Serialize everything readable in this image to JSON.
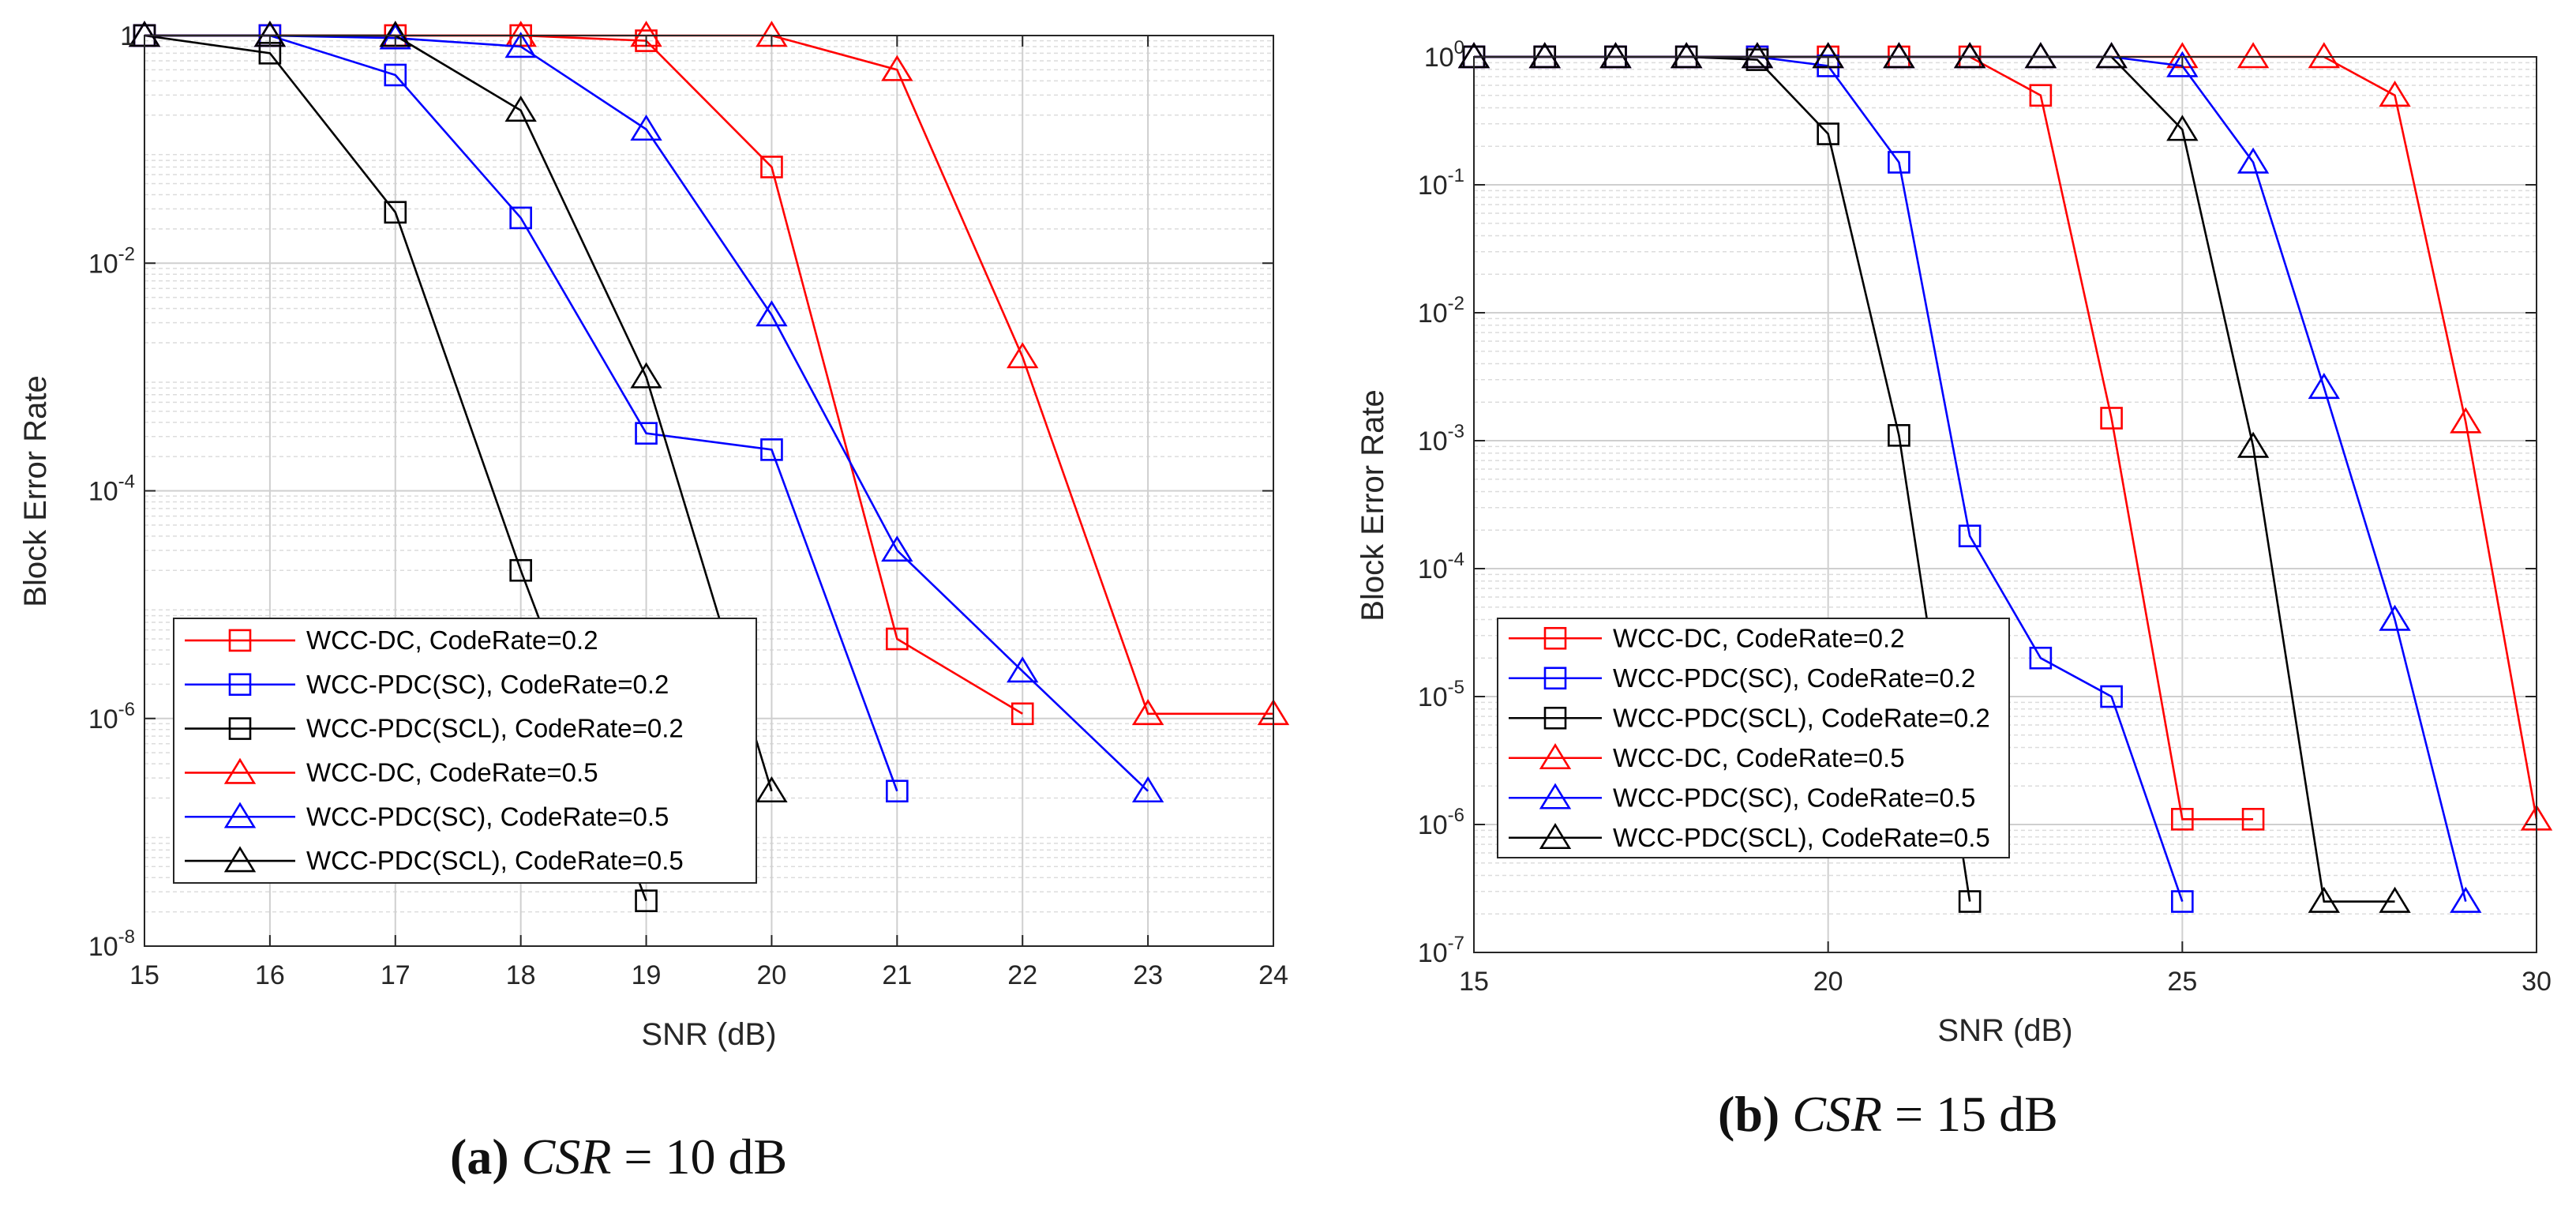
{
  "chart_data": [
    {
      "id": "a",
      "type": "line",
      "yscale": "log",
      "xlabel": "SNR (dB)",
      "ylabel": "Block Error Rate",
      "xlim": [
        15,
        24
      ],
      "ylim": [
        1e-08,
        1
      ],
      "xticks": [
        15,
        16,
        17,
        18,
        19,
        20,
        21,
        22,
        23,
        24
      ],
      "xtick_labels": [
        "15",
        "16",
        "17",
        "18",
        "19",
        "20",
        "21",
        "22",
        "23",
        "24"
      ],
      "yticks": [
        {
          "value": 1e-08,
          "base": "10",
          "exp": "-8"
        },
        {
          "value": 1e-06,
          "base": "10",
          "exp": "-6"
        },
        {
          "value": 0.0001,
          "base": "10",
          "exp": "-4"
        },
        {
          "value": 0.01,
          "base": "10",
          "exp": "-2"
        },
        {
          "value": 1,
          "base": "1",
          "exp": ""
        }
      ],
      "grid": true,
      "legend_position": "bottom-left",
      "caption": {
        "letter": "(a)",
        "variable": "CSR",
        "rest": " = 10 dB"
      },
      "series": [
        {
          "name": "WCC-DC, CodeRate=0.2",
          "color": "#ff0000",
          "marker": "square",
          "x": [
            15,
            16,
            17,
            18,
            19,
            20,
            21,
            22
          ],
          "y": [
            1,
            1,
            1,
            1,
            0.9,
            0.07,
            5e-06,
            1.1e-06
          ]
        },
        {
          "name": "WCC-PDC(SC), CodeRate=0.2",
          "color": "#0000ff",
          "marker": "square",
          "x": [
            15,
            16,
            17,
            18,
            19,
            20,
            21
          ],
          "y": [
            1,
            1,
            0.45,
            0.025,
            0.00032,
            0.00023,
            2.3e-07
          ]
        },
        {
          "name": "WCC-PDC(SCL), CodeRate=0.2",
          "color": "#000000",
          "marker": "square",
          "x": [
            15,
            16,
            17,
            18,
            19
          ],
          "y": [
            1,
            0.7,
            0.028,
            2e-05,
            2.5e-08
          ]
        },
        {
          "name": "WCC-DC, CodeRate=0.5",
          "color": "#ff0000",
          "marker": "triangle",
          "x": [
            15,
            16,
            17,
            18,
            19,
            20,
            21,
            22,
            23,
            24
          ],
          "y": [
            1,
            1,
            1,
            1,
            1,
            1,
            0.5,
            0.0015,
            1.1e-06,
            1.1e-06
          ]
        },
        {
          "name": "WCC-PDC(SC), CodeRate=0.5",
          "color": "#0000ff",
          "marker": "triangle",
          "x": [
            15,
            16,
            17,
            18,
            19,
            20,
            21,
            22,
            23
          ],
          "y": [
            1,
            1,
            0.95,
            0.8,
            0.15,
            0.0035,
            3e-05,
            2.6e-06,
            2.3e-07
          ]
        },
        {
          "name": "WCC-PDC(SCL), CodeRate=0.5",
          "color": "#000000",
          "marker": "triangle",
          "x": [
            15,
            16,
            17,
            18,
            19,
            20
          ],
          "y": [
            1,
            1,
            1,
            0.22,
            0.001,
            2.3e-07
          ]
        }
      ]
    },
    {
      "id": "b",
      "type": "line",
      "yscale": "log",
      "xlabel": "SNR (dB)",
      "ylabel": "Block Error Rate",
      "xlim": [
        15,
        30
      ],
      "ylim": [
        1e-07,
        1
      ],
      "xticks": [
        15,
        20,
        25,
        30
      ],
      "xtick_labels": [
        "15",
        "20",
        "25",
        "30"
      ],
      "yticks": [
        {
          "value": 1e-07,
          "base": "10",
          "exp": "-7"
        },
        {
          "value": 1e-06,
          "base": "10",
          "exp": "-6"
        },
        {
          "value": 1e-05,
          "base": "10",
          "exp": "-5"
        },
        {
          "value": 0.0001,
          "base": "10",
          "exp": "-4"
        },
        {
          "value": 0.001,
          "base": "10",
          "exp": "-3"
        },
        {
          "value": 0.01,
          "base": "10",
          "exp": "-2"
        },
        {
          "value": 0.1,
          "base": "10",
          "exp": "-1"
        },
        {
          "value": 1,
          "base": "10",
          "exp": "0"
        }
      ],
      "grid": true,
      "legend_position": "bottom-left",
      "caption": {
        "letter": "(b)",
        "variable": "CSR",
        "rest": " = 15 dB"
      },
      "series": [
        {
          "name": "WCC-DC, CodeRate=0.2",
          "color": "#ff0000",
          "marker": "square",
          "x": [
            15,
            16,
            17,
            18,
            19,
            20,
            21,
            22,
            23,
            24,
            25,
            26
          ],
          "y": [
            1,
            1,
            1,
            1,
            1,
            1,
            1,
            1,
            0.5,
            0.0015,
            1.1e-06,
            1.1e-06
          ]
        },
        {
          "name": "WCC-PDC(SC), CodeRate=0.2",
          "color": "#0000ff",
          "marker": "square",
          "x": [
            15,
            16,
            17,
            18,
            19,
            20,
            21,
            22,
            23,
            24,
            25
          ],
          "y": [
            1,
            1,
            1,
            1,
            1,
            0.85,
            0.15,
            0.00018,
            2e-05,
            1e-05,
            2.5e-07
          ]
        },
        {
          "name": "WCC-PDC(SCL), CodeRate=0.2",
          "color": "#000000",
          "marker": "square",
          "x": [
            15,
            16,
            17,
            18,
            19,
            20,
            21,
            22
          ],
          "y": [
            1,
            1,
            1,
            1,
            0.95,
            0.25,
            0.0011,
            2.5e-07
          ]
        },
        {
          "name": "WCC-DC, CodeRate=0.5",
          "color": "#ff0000",
          "marker": "triangle",
          "x": [
            15,
            16,
            17,
            18,
            19,
            20,
            21,
            22,
            23,
            24,
            25,
            26,
            27,
            28,
            29,
            30
          ],
          "y": [
            1,
            1,
            1,
            1,
            1,
            1,
            1,
            1,
            1,
            1,
            1,
            1,
            1,
            0.5,
            0.0014,
            1.1e-06
          ]
        },
        {
          "name": "WCC-PDC(SC), CodeRate=0.5",
          "color": "#0000ff",
          "marker": "triangle",
          "x": [
            15,
            16,
            17,
            18,
            19,
            20,
            21,
            22,
            23,
            24,
            25,
            26,
            27,
            28,
            29
          ],
          "y": [
            1,
            1,
            1,
            1,
            1,
            1,
            1,
            1,
            1,
            1,
            0.85,
            0.15,
            0.0026,
            4e-05,
            2.5e-07
          ]
        },
        {
          "name": "WCC-PDC(SCL), CodeRate=0.5",
          "color": "#000000",
          "marker": "triangle",
          "x": [
            15,
            16,
            17,
            18,
            19,
            20,
            21,
            22,
            23,
            24,
            25,
            26,
            27,
            28
          ],
          "y": [
            1,
            1,
            1,
            1,
            1,
            1,
            1,
            1,
            1,
            1,
            0.27,
            0.0009,
            2.5e-07,
            2.5e-07
          ]
        }
      ]
    }
  ]
}
